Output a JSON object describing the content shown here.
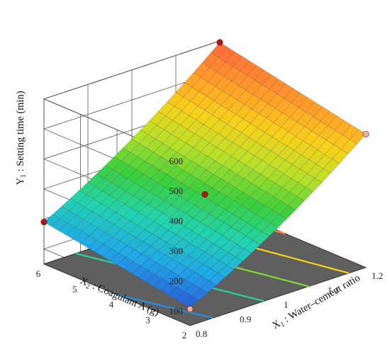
{
  "chart_data": {
    "type": "surface3d",
    "title": "",
    "zlabel": "Y1 : Setting time (min)",
    "zlabel_parts": {
      "var": "Y",
      "sub": "1",
      "rest": " : Setting time (min)"
    },
    "xlabel": "X1 : Water–cement ratio",
    "xlabel_parts": {
      "var": "X",
      "sub": "1",
      "rest": " : Water–cement ratio"
    },
    "ylabel": "X2 : Coagulant A (g)",
    "ylabel_parts": {
      "var": "X",
      "sub": "2",
      "rest": " : Coagulant A (g)"
    },
    "x_ticks": [
      "0.8",
      "0.9",
      "1",
      "1.1",
      "1.2"
    ],
    "x_range": [
      0.8,
      1.2
    ],
    "y_ticks": [
      "2",
      "3",
      "4",
      "5",
      "6"
    ],
    "y_range": [
      2,
      6
    ],
    "z_ticks": [
      "100",
      "200",
      "300",
      "400",
      "500",
      "600"
    ],
    "z_range": [
      50,
      600
    ],
    "surface_corners": [
      {
        "x": 0.8,
        "y": 2,
        "z": 110
      },
      {
        "x": 0.8,
        "y": 6,
        "z": 190
      },
      {
        "x": 1.2,
        "y": 2,
        "z": 495
      },
      {
        "x": 1.2,
        "y": 6,
        "z": 595
      }
    ],
    "design_points": [
      {
        "x": 0.8,
        "y": 6,
        "z": 190,
        "color": "#b01818"
      },
      {
        "x": 1.2,
        "y": 6,
        "z": 595,
        "color": "#b01818"
      },
      {
        "x": 1.0,
        "y": 4,
        "z": 288,
        "color": "#b01818"
      },
      {
        "x": 1.2,
        "y": 2,
        "z": 495,
        "color": "#f4b0a0"
      },
      {
        "x": 0.8,
        "y": 2,
        "z": 105,
        "color": "#f4b0a0"
      }
    ],
    "contour_levels": [
      150,
      250,
      350,
      450,
      550
    ],
    "colormap": [
      "#2f4bd6",
      "#21a8e8",
      "#22d3b0",
      "#3ccf3c",
      "#b6e02a",
      "#f7d21b",
      "#ff9c2a",
      "#ff6a3a"
    ],
    "floor_color": "#5f5f5f",
    "grid": true
  }
}
